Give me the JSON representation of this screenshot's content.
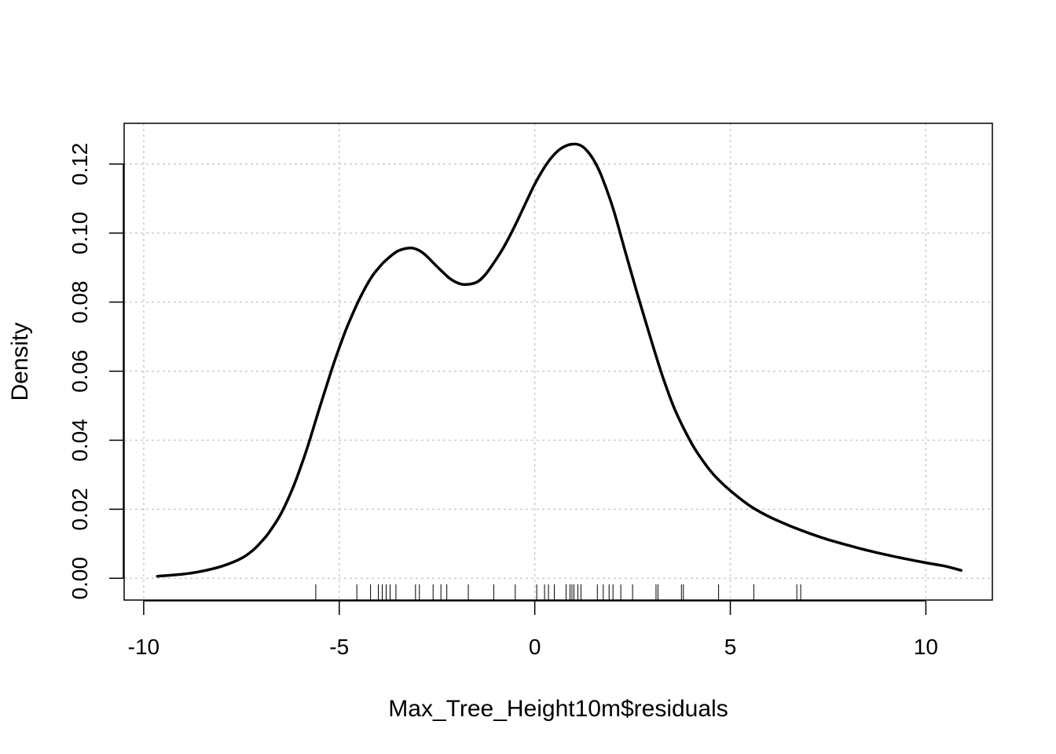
{
  "chart_data": {
    "type": "line",
    "title": "",
    "xlabel": "Max_Tree_Height10m$residuals",
    "ylabel": "Density",
    "xlim": [
      -10.5,
      11.7
    ],
    "ylim": [
      -0.0063,
      0.1318
    ],
    "x_ticks": [
      -10,
      -5,
      0,
      5,
      10
    ],
    "x_tick_labels": [
      "-10",
      "-5",
      "0",
      "5",
      "10"
    ],
    "y_ticks": [
      0.0,
      0.02,
      0.04,
      0.06,
      0.08,
      0.1,
      0.12
    ],
    "y_tick_labels": [
      "0.00",
      "0.02",
      "0.04",
      "0.06",
      "0.08",
      "0.10",
      "0.12"
    ],
    "grid": true,
    "legend": "none",
    "series": [
      {
        "x": [
          -9.65,
          -9.0,
          -8.5,
          -8.0,
          -7.5,
          -7.2,
          -7.0,
          -6.8,
          -6.5,
          -6.2,
          -6.0,
          -5.8,
          -5.5,
          -5.2,
          -5.0,
          -4.8,
          -4.5,
          -4.2,
          -4.0,
          -3.8,
          -3.5,
          -3.2,
          -3.0,
          -2.8,
          -2.5,
          -2.2,
          -2.0,
          -1.8,
          -1.5,
          -1.3,
          -1.1,
          -0.8,
          -0.5,
          -0.2,
          0.0,
          0.2,
          0.4,
          0.6,
          0.8,
          1.0,
          1.15,
          1.3,
          1.5,
          1.7,
          2.0,
          2.3,
          2.6,
          3.0,
          3.3,
          3.6,
          4.0,
          4.3,
          4.6,
          5.0,
          5.5,
          6.0,
          6.5,
          7.0,
          7.5,
          8.0,
          8.5,
          9.0,
          9.5,
          10.0,
          10.5,
          10.9
        ],
        "y": [
          0.0006,
          0.0012,
          0.0021,
          0.0035,
          0.0058,
          0.0082,
          0.0105,
          0.0132,
          0.0185,
          0.0258,
          0.0318,
          0.0384,
          0.0495,
          0.0602,
          0.0668,
          0.0728,
          0.0805,
          0.0868,
          0.0898,
          0.0922,
          0.0948,
          0.0957,
          0.0952,
          0.0937,
          0.0903,
          0.0871,
          0.0857,
          0.0851,
          0.0857,
          0.0875,
          0.0905,
          0.0958,
          0.1023,
          0.1095,
          0.1142,
          0.1182,
          0.1215,
          0.1239,
          0.1253,
          0.1258,
          0.1255,
          0.1243,
          0.1213,
          0.1167,
          0.1072,
          0.0952,
          0.0833,
          0.0681,
          0.0574,
          0.0484,
          0.0393,
          0.034,
          0.0297,
          0.0254,
          0.021,
          0.0178,
          0.0153,
          0.0131,
          0.0112,
          0.0096,
          0.0081,
          0.0068,
          0.0056,
          0.0045,
          0.0035,
          0.0023
        ]
      }
    ],
    "rug": [
      -5.6,
      -4.55,
      -4.2,
      -4.0,
      -3.9,
      -3.8,
      -3.7,
      -3.55,
      -3.05,
      -2.95,
      -2.6,
      -2.4,
      -2.25,
      -1.7,
      -1.05,
      -0.5,
      0.05,
      0.25,
      0.35,
      0.5,
      0.8,
      0.9,
      0.95,
      1.0,
      1.1,
      1.18,
      1.6,
      1.75,
      1.9,
      2.0,
      2.2,
      2.5,
      3.1,
      3.15,
      3.75,
      3.8,
      4.7,
      5.6,
      6.7,
      6.8
    ]
  }
}
